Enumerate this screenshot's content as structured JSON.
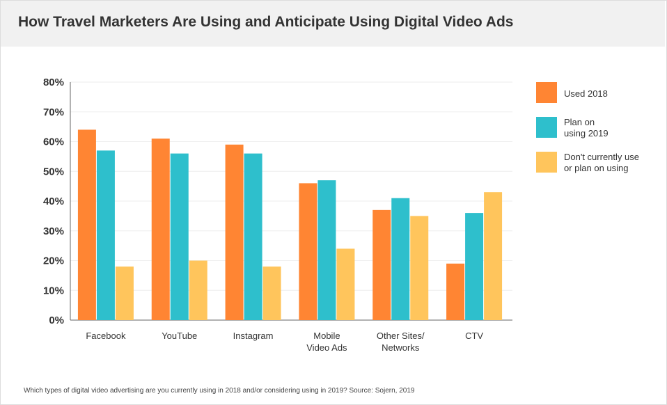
{
  "header": {
    "title": "How Travel Marketers Are Using and Anticipate Using Digital Video Ads"
  },
  "footnote": "Which types of digital video advertising are you currently using in 2018 and/or considering using in 2019? Source: Sojern, 2019",
  "legend": {
    "items": [
      {
        "line1": "Used 2018",
        "line2": "",
        "color": "#ff8533"
      },
      {
        "line1": "Plan on",
        "line2": "using 2019",
        "color": "#2ebfcc"
      },
      {
        "line1": "Don't currently use",
        "line2": "or plan on using",
        "color": "#ffc55c"
      }
    ]
  },
  "chart_data": {
    "type": "bar",
    "categories": [
      [
        "Facebook"
      ],
      [
        "YouTube"
      ],
      [
        "Instagram"
      ],
      [
        "Mobile",
        "Video Ads"
      ],
      [
        "Other Sites/",
        "Networks"
      ],
      [
        "CTV"
      ]
    ],
    "series": [
      {
        "name": "Used 2018",
        "color": "#ff8533",
        "values": [
          64,
          61,
          59,
          46,
          37,
          19
        ]
      },
      {
        "name": "Plan on using 2019",
        "color": "#2ebfcc",
        "values": [
          57,
          56,
          56,
          47,
          41,
          36
        ]
      },
      {
        "name": "Don't currently use or plan on using",
        "color": "#ffc55c",
        "values": [
          18,
          20,
          18,
          24,
          35,
          43
        ]
      }
    ],
    "ylim": [
      0,
      80
    ],
    "yticks": [
      "0%",
      "10%",
      "20%",
      "30%",
      "40%",
      "50%",
      "60%",
      "70%",
      "80%"
    ],
    "grid": true,
    "legend_position": "right"
  }
}
